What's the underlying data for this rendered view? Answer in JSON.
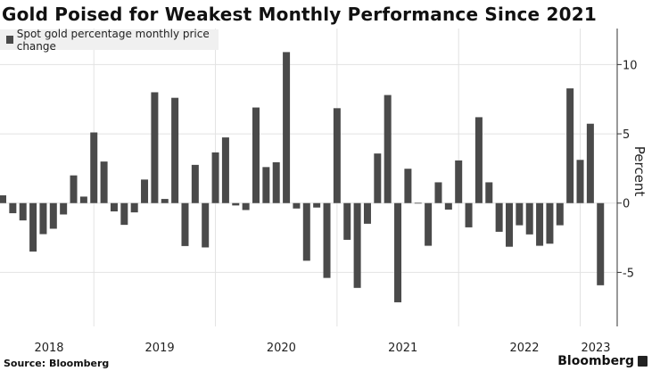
{
  "title": "Gold Poised for Weakest Monthly Performance Since 2021",
  "source": "Source: Bloomberg",
  "logo": "Bloomberg",
  "chart_data": {
    "type": "bar",
    "title": "Gold Poised for Weakest Monthly Performance Since 2021",
    "ylabel": "Percent",
    "xlabel": "",
    "ylim": [
      -8.9,
      12.6
    ],
    "y_ticks": [
      "10",
      "5",
      "0",
      "-5"
    ],
    "y_tick_values": [
      10,
      5,
      0,
      -5
    ],
    "x_ticks": [
      "2018",
      "2019",
      "2020",
      "2021",
      "2022",
      "2023"
    ],
    "y_axis_side": "right",
    "grid": true,
    "legend_position": "top-left",
    "bar_color": "#4a4a4a",
    "series": [
      {
        "name": "Spot gold percentage monthly price change",
        "x": [
          "2018-03",
          "2018-04",
          "2018-05",
          "2018-06",
          "2018-07",
          "2018-08",
          "2018-09",
          "2018-10",
          "2018-11",
          "2018-12",
          "2019-01",
          "2019-02",
          "2019-03",
          "2019-04",
          "2019-05",
          "2019-06",
          "2019-07",
          "2019-08",
          "2019-09",
          "2019-10",
          "2019-11",
          "2019-12",
          "2020-01",
          "2020-02",
          "2020-03",
          "2020-04",
          "2020-05",
          "2020-06",
          "2020-07",
          "2020-08",
          "2020-09",
          "2020-10",
          "2020-11",
          "2020-12",
          "2021-01",
          "2021-02",
          "2021-03",
          "2021-04",
          "2021-05",
          "2021-06",
          "2021-07",
          "2021-08",
          "2021-09",
          "2021-10",
          "2021-11",
          "2021-12",
          "2022-01",
          "2022-02",
          "2022-03",
          "2022-04",
          "2022-05",
          "2022-06",
          "2022-07",
          "2022-08",
          "2022-09",
          "2022-10",
          "2022-11",
          "2022-12",
          "2023-01",
          "2023-02"
        ],
        "values": [
          0.56,
          -0.73,
          -1.25,
          -3.5,
          -2.24,
          -1.85,
          -0.82,
          2.0,
          0.47,
          5.1,
          3.0,
          -0.6,
          -1.57,
          -0.67,
          1.7,
          8.0,
          0.3,
          7.6,
          -3.1,
          2.76,
          -3.2,
          3.66,
          4.74,
          -0.17,
          -0.5,
          6.9,
          2.6,
          2.95,
          10.9,
          -0.39,
          -4.16,
          -0.32,
          -5.4,
          6.85,
          -2.65,
          -6.12,
          -1.49,
          3.58,
          7.8,
          -7.16,
          2.48,
          0.02,
          -3.08,
          1.5,
          -0.47,
          3.08,
          -1.75,
          6.2,
          1.5,
          -2.07,
          -3.15,
          -1.6,
          -2.26,
          -3.08,
          -2.93,
          -1.6,
          8.28,
          3.12,
          5.73,
          -5.93
        ]
      }
    ]
  }
}
